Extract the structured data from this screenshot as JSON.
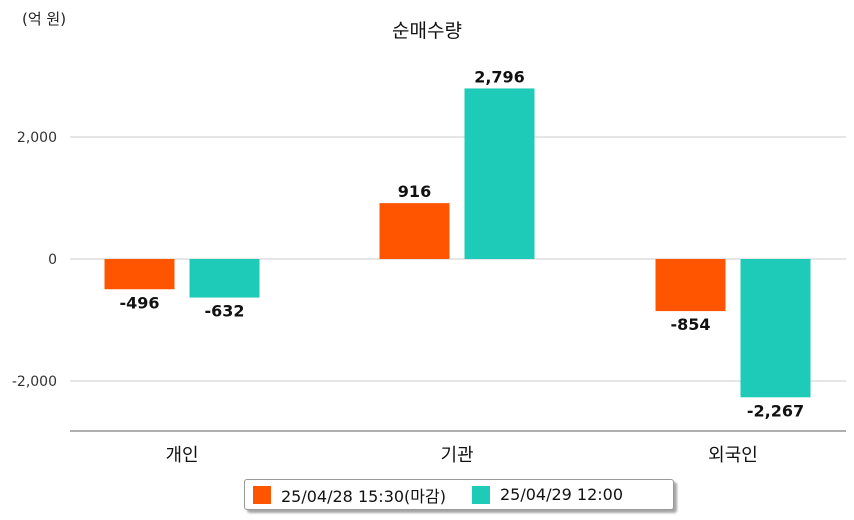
{
  "chart_data": {
    "type": "bar",
    "title": "순매수량",
    "unit_label": "(억 원)",
    "categories": [
      "개인",
      "기관",
      "외국인"
    ],
    "series": [
      {
        "name": "25/04/28 15:30(마감)",
        "color": "#ff5500",
        "values": [
          -496,
          916,
          -854
        ]
      },
      {
        "name": "25/04/29 12:00",
        "color": "#1ecbb9",
        "values": [
          -632,
          2796,
          -2267
        ]
      }
    ],
    "data_labels": [
      [
        "-496",
        "916",
        "-854"
      ],
      [
        "-632",
        "2,796",
        "-2,267"
      ]
    ],
    "y_ticks": [
      {
        "value": 2000,
        "label": "2,000"
      },
      {
        "value": 0,
        "label": "0"
      },
      {
        "value": -2000,
        "label": "-2,000"
      }
    ],
    "ylim": [
      -2800,
      3800
    ],
    "grid": true,
    "legend_position": "bottom"
  }
}
